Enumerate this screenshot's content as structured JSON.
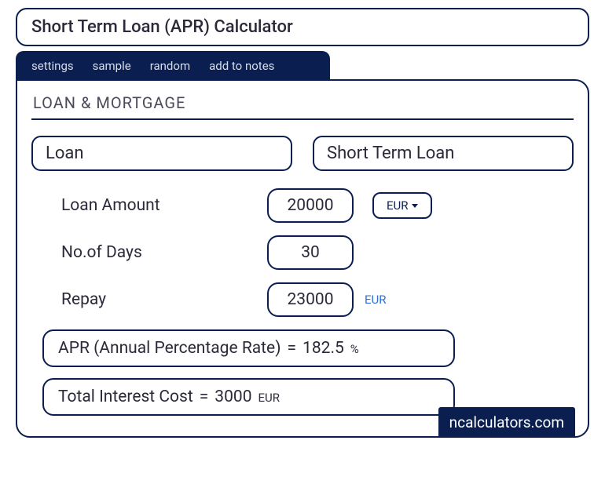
{
  "colors": {
    "primary": "#0b1e50",
    "text": "#2a2a3a",
    "link": "#2a6fd6",
    "background": "#ffffff"
  },
  "title": "Short Term Loan (APR) Calculator",
  "tabs": [
    "settings",
    "sample",
    "random",
    "add to notes"
  ],
  "section_title": "LOAN & MORTGAGE",
  "categories": {
    "primary": "Loan",
    "secondary": "Short Term Loan"
  },
  "fields": {
    "loan_amount": {
      "label": "Loan Amount",
      "value": "20000",
      "currency": "EUR"
    },
    "days": {
      "label": "No.of Days",
      "value": "30"
    },
    "repay": {
      "label": "Repay",
      "value": "23000",
      "currency": "EUR"
    }
  },
  "results": {
    "apr": {
      "label": "APR (Annual Percentage Rate)",
      "eq": "=",
      "value": "182.5",
      "unit": "%"
    },
    "cost": {
      "label": "Total Interest Cost",
      "eq": "=",
      "value": "3000",
      "unit": "EUR"
    }
  },
  "brand": "ncalculators.com"
}
